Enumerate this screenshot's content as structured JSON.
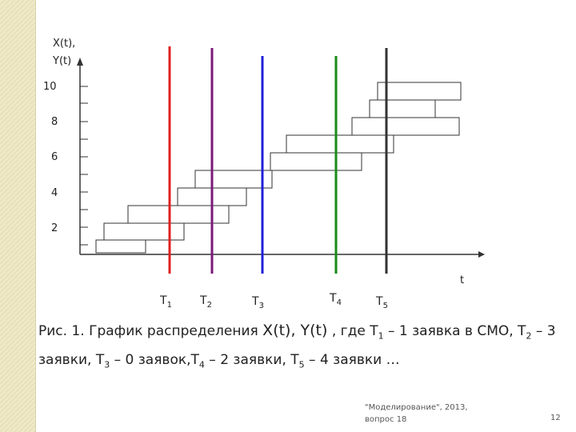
{
  "colors": {
    "T1": "#e02020",
    "T2": "#7a1a7a",
    "T3": "#2020d8",
    "T4": "#1a8a1a",
    "T5": "#333333",
    "stripe": "#efe9c8"
  },
  "axes": {
    "y_label_line1": "X(t),",
    "y_label_line2": "Y(t)",
    "x_label": "t",
    "y_ticks": [
      "10",
      "8",
      "6",
      "4",
      "2"
    ]
  },
  "time_marks": [
    {
      "name": "T",
      "sub": "1"
    },
    {
      "name": "T",
      "sub": "2"
    },
    {
      "name": "T",
      "sub": "3"
    },
    {
      "name": "T",
      "sub": "4"
    },
    {
      "name": "T",
      "sub": "5"
    }
  ],
  "caption": {
    "p1": "Рис. 1. График распределения ",
    "p2": "X(t), Y(t)",
    "p3": " , где T",
    "s1": "1",
    "p4": " – 1 заявка в СМО,    T",
    "s2": "2",
    "p5": " – 3 заявки,    T",
    "s3": "3",
    "p6": " – 0 заявок,T",
    "s4": "4",
    "p7": " – 2 заявки,    T",
    "s5": "5",
    "p8": " – 4 заявки …"
  },
  "footer": {
    "line1": "\"Моделирование\", 2013,",
    "line2": "вопрос 18",
    "page_number": "12"
  }
}
